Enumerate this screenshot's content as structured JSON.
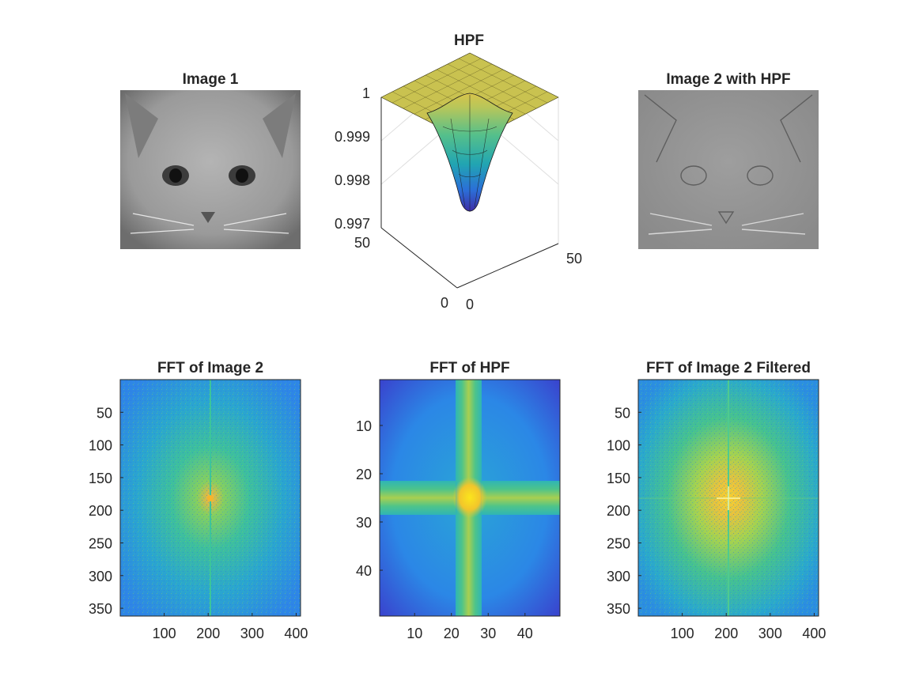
{
  "figure": {
    "background": "#ffffff",
    "text_color": "#262626",
    "axis_color": "#262626",
    "grid_color": "#e6e6e6"
  },
  "chart_data": [
    {
      "type": "image",
      "title": "Image 1",
      "content": "grayscale photo of a kitten face",
      "colormap": "gray"
    },
    {
      "type": "surface",
      "title": "HPF",
      "x_ticks": [
        "0",
        "50"
      ],
      "y_ticks": [
        "0",
        "50"
      ],
      "z_ticks": [
        "0.997",
        "0.998",
        "0.999",
        "1"
      ],
      "xlim": [
        0,
        50
      ],
      "ylim": [
        0,
        50
      ],
      "zlim": [
        0.997,
        1
      ],
      "grid": true,
      "colormap": "parula",
      "minimum": 0.9973,
      "minimum_location": [
        25,
        25
      ]
    },
    {
      "type": "image",
      "title": "Image 2 with HPF",
      "content": "high-pass filtered grayscale kitten photo",
      "colormap": "gray"
    },
    {
      "type": "heatmap",
      "title": "FFT of Image 2",
      "x_ticks": [
        100,
        200,
        300,
        400
      ],
      "y_ticks": [
        50,
        100,
        150,
        200,
        250,
        300,
        350
      ],
      "xlim": [
        0,
        410
      ],
      "ylim": [
        0,
        362
      ],
      "colormap": "parula",
      "peak": [
        205,
        182
      ]
    },
    {
      "type": "heatmap",
      "title": "FFT of HPF",
      "x_ticks": [
        10,
        20,
        30,
        40
      ],
      "y_ticks": [
        10,
        20,
        30,
        40
      ],
      "xlim": [
        0.5,
        49.5
      ],
      "ylim": [
        0.5,
        49.5
      ],
      "colormap": "parula",
      "peak": [
        25,
        25
      ]
    },
    {
      "type": "heatmap",
      "title": "FFT of Image 2 Filtered",
      "x_ticks": [
        100,
        200,
        300,
        400
      ],
      "y_ticks": [
        50,
        100,
        150,
        200,
        250,
        300,
        350
      ],
      "xlim": [
        0,
        410
      ],
      "ylim": [
        0,
        362
      ],
      "colormap": "parula",
      "peak": [
        205,
        182
      ]
    }
  ]
}
